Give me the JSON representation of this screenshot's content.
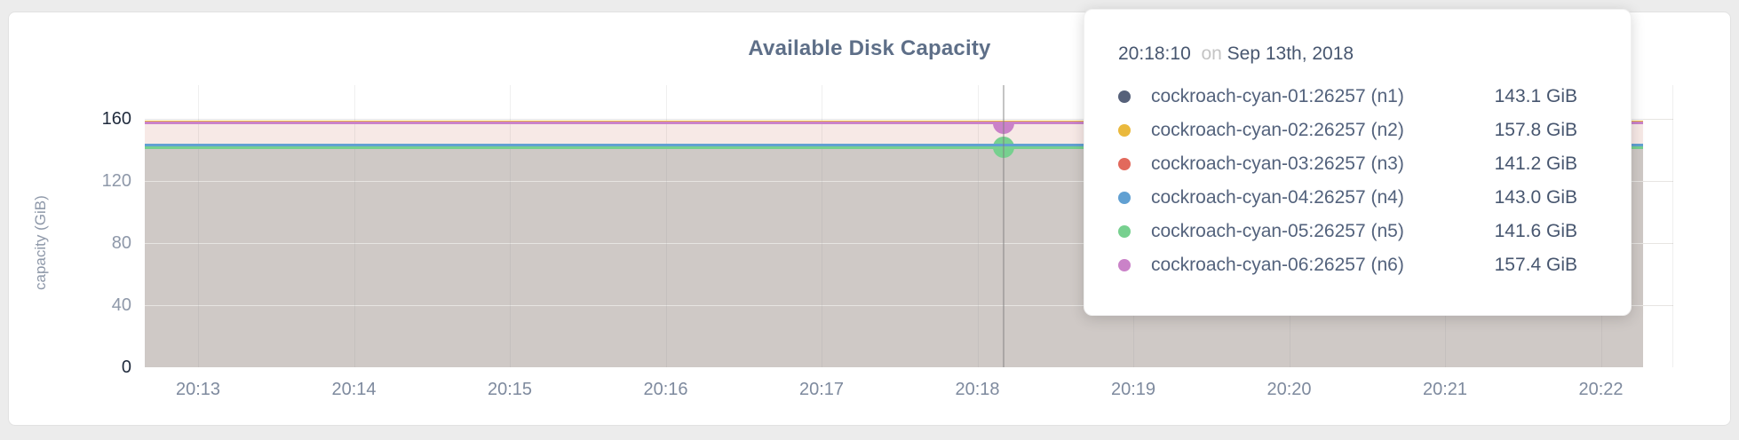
{
  "page": {
    "background": "#ececec"
  },
  "chart_data": {
    "type": "area",
    "title": "Available Disk Capacity",
    "ylabel": "capacity (GiB)",
    "ylim": [
      0,
      160
    ],
    "y_ticks": [
      0,
      40,
      80,
      120,
      160
    ],
    "y_ticks_dark": [
      0,
      160
    ],
    "x_ticks": [
      "20:13",
      "20:14",
      "20:15",
      "20:16",
      "20:17",
      "20:18",
      "20:19",
      "20:20",
      "20:21",
      "20:22"
    ],
    "grid": "on",
    "series": [
      {
        "id": "n1",
        "name": "cockroach-cyan-01:26257 (n1)",
        "color": "#56617a",
        "value": 143.1,
        "value_label": "143.1 GiB"
      },
      {
        "id": "n2",
        "name": "cockroach-cyan-02:26257 (n2)",
        "color": "#eab93d",
        "value": 157.8,
        "value_label": "157.8 GiB"
      },
      {
        "id": "n3",
        "name": "cockroach-cyan-03:26257 (n3)",
        "color": "#e2695c",
        "value": 141.2,
        "value_label": "141.2 GiB"
      },
      {
        "id": "n4",
        "name": "cockroach-cyan-04:26257 (n4)",
        "color": "#61a0d2",
        "value": 143.0,
        "value_label": "143.0 GiB"
      },
      {
        "id": "n5",
        "name": "cockroach-cyan-05:26257 (n5)",
        "color": "#77d08f",
        "value": 141.6,
        "value_label": "141.6 GiB"
      },
      {
        "id": "n6",
        "name": "cockroach-cyan-06:26257 (n6)",
        "color": "#ca82c8",
        "value": 157.4,
        "value_label": "157.4 GiB"
      }
    ],
    "hover": {
      "time": "20:18:10",
      "conjunction": "on",
      "date": "Sep 13th, 2018",
      "tick_offset": 5.167,
      "marker_half_series": "n6",
      "marker_full_series": "n5"
    }
  }
}
